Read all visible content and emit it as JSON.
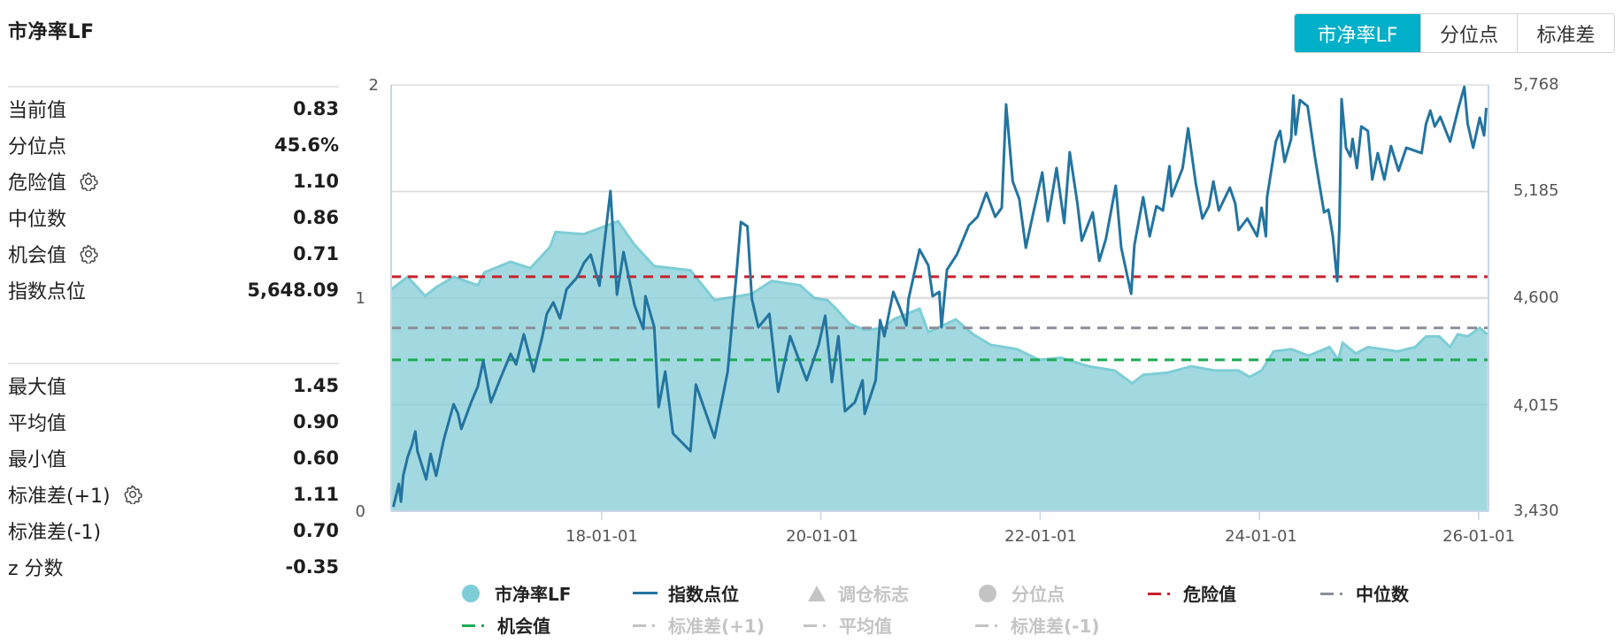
{
  "title": "市净率LF",
  "toggle_buttons": [
    {
      "label": "市净率LF",
      "active": true
    },
    {
      "label": "分位点",
      "active": false
    },
    {
      "label": "标准差",
      "active": false
    }
  ],
  "stats_top": [
    {
      "label": "当前值",
      "value": "0.83",
      "gear": false
    },
    {
      "label": "分位点",
      "value": "45.6%",
      "gear": false
    },
    {
      "label": "危险值",
      "value": "1.10",
      "gear": true
    },
    {
      "label": "中位数",
      "value": "0.86",
      "gear": false
    },
    {
      "label": "机会值",
      "value": "0.71",
      "gear": true
    },
    {
      "label": "指数点位",
      "value": "5,648.09",
      "gear": false
    }
  ],
  "stats_bottom": [
    {
      "label": "最大值",
      "value": "1.45",
      "gear": false
    },
    {
      "label": "平均值",
      "value": "0.90",
      "gear": false
    },
    {
      "label": "最小值",
      "value": "0.60",
      "gear": false
    },
    {
      "label": "标准差(+1)",
      "value": "1.11",
      "gear": true
    },
    {
      "label": "标准差(-1)",
      "value": "0.70",
      "gear": false
    },
    {
      "label": "z 分数",
      "value": "-0.35",
      "gear": false
    }
  ],
  "colors": {
    "accent": "#00afc8",
    "pb_fill": "#a2d9e0",
    "pb_line": "#7ecdd6",
    "index_line": "#2374a0",
    "danger": "#c8222a",
    "median": "#8a8f99",
    "opportunity": "#1faa55",
    "legend_off": "#c4c4c4"
  },
  "chart_data": {
    "type": "area+line",
    "title": "市净率LF",
    "xlabel": "",
    "ylabel_left": "市净率LF",
    "ylabel_right": "指数点位",
    "x_range": [
      2016.08,
      2026.09
    ],
    "ylim_left": [
      0,
      2
    ],
    "ylim_right": [
      3430,
      5768
    ],
    "left_ticks": [
      "0",
      "1",
      "2"
    ],
    "right_ticks": [
      "3,430",
      "4,015",
      "4,600",
      "5,185",
      "5,768"
    ],
    "x_ticks": [
      {
        "label": "18-01-01",
        "x": 2018.0
      },
      {
        "label": "20-01-01",
        "x": 2020.0
      },
      {
        "label": "22-01-01",
        "x": 2022.0
      },
      {
        "label": "24-01-01",
        "x": 2024.0
      },
      {
        "label": "26-01-01",
        "x": 2026.0
      }
    ],
    "grid": true,
    "legend_position": "bottom",
    "reference_lines": [
      {
        "name": "危险值",
        "value": 1.1,
        "color": "#c8222a"
      },
      {
        "name": "中位数",
        "value": 0.86,
        "color": "#8a8f99"
      },
      {
        "name": "机会值",
        "value": 0.71,
        "color": "#1faa55"
      }
    ],
    "series": [
      {
        "name": "市净率LF",
        "axis": "left",
        "kind": "area",
        "points": [
          [
            2016.08,
            1.04
          ],
          [
            2016.23,
            1.1
          ],
          [
            2016.39,
            1.01
          ],
          [
            2016.49,
            1.05
          ],
          [
            2016.65,
            1.1
          ],
          [
            2016.87,
            1.06
          ],
          [
            2016.93,
            1.12
          ],
          [
            2017.17,
            1.17
          ],
          [
            2017.35,
            1.14
          ],
          [
            2017.53,
            1.24
          ],
          [
            2017.58,
            1.31
          ],
          [
            2017.84,
            1.3
          ],
          [
            2018.15,
            1.36
          ],
          [
            2018.3,
            1.25
          ],
          [
            2018.48,
            1.15
          ],
          [
            2018.81,
            1.13
          ],
          [
            2019.03,
            0.99
          ],
          [
            2019.37,
            1.02
          ],
          [
            2019.55,
            1.08
          ],
          [
            2019.81,
            1.06
          ],
          [
            2019.94,
            1.0
          ],
          [
            2020.06,
            0.99
          ],
          [
            2020.14,
            0.95
          ],
          [
            2020.26,
            0.88
          ],
          [
            2020.4,
            0.85
          ],
          [
            2020.58,
            0.86
          ],
          [
            2020.66,
            0.9
          ],
          [
            2020.9,
            0.95
          ],
          [
            2020.98,
            0.84
          ],
          [
            2021.23,
            0.9
          ],
          [
            2021.39,
            0.83
          ],
          [
            2021.55,
            0.78
          ],
          [
            2021.79,
            0.76
          ],
          [
            2021.99,
            0.71
          ],
          [
            2022.19,
            0.72
          ],
          [
            2022.44,
            0.68
          ],
          [
            2022.68,
            0.66
          ],
          [
            2022.84,
            0.6
          ],
          [
            2022.94,
            0.64
          ],
          [
            2023.16,
            0.65
          ],
          [
            2023.38,
            0.68
          ],
          [
            2023.59,
            0.66
          ],
          [
            2023.81,
            0.66
          ],
          [
            2023.91,
            0.63
          ],
          [
            2024.02,
            0.66
          ],
          [
            2024.13,
            0.75
          ],
          [
            2024.29,
            0.76
          ],
          [
            2024.45,
            0.73
          ],
          [
            2024.64,
            0.77
          ],
          [
            2024.72,
            0.71
          ],
          [
            2024.76,
            0.79
          ],
          [
            2024.88,
            0.74
          ],
          [
            2024.99,
            0.77
          ],
          [
            2025.26,
            0.75
          ],
          [
            2025.42,
            0.77
          ],
          [
            2025.52,
            0.82
          ],
          [
            2025.64,
            0.82
          ],
          [
            2025.74,
            0.77
          ],
          [
            2025.81,
            0.83
          ],
          [
            2025.9,
            0.82
          ],
          [
            2026.01,
            0.86
          ],
          [
            2026.08,
            0.83
          ]
        ]
      },
      {
        "name": "指数点位",
        "axis": "right",
        "kind": "line",
        "points": [
          [
            2016.1,
            3454
          ],
          [
            2016.15,
            3580
          ],
          [
            2016.17,
            3483
          ],
          [
            2016.19,
            3624
          ],
          [
            2016.23,
            3726
          ],
          [
            2016.27,
            3794
          ],
          [
            2016.3,
            3867
          ],
          [
            2016.32,
            3760
          ],
          [
            2016.4,
            3605
          ],
          [
            2016.44,
            3745
          ],
          [
            2016.49,
            3624
          ],
          [
            2016.56,
            3823
          ],
          [
            2016.65,
            4017
          ],
          [
            2016.69,
            3964
          ],
          [
            2016.72,
            3881
          ],
          [
            2016.81,
            4027
          ],
          [
            2016.87,
            4114
          ],
          [
            2016.92,
            4255
          ],
          [
            2016.99,
            4027
          ],
          [
            2017.07,
            4148
          ],
          [
            2017.17,
            4293
          ],
          [
            2017.22,
            4235
          ],
          [
            2017.29,
            4400
          ],
          [
            2017.38,
            4196
          ],
          [
            2017.46,
            4390
          ],
          [
            2017.5,
            4512
          ],
          [
            2017.56,
            4575
          ],
          [
            2017.62,
            4487
          ],
          [
            2017.68,
            4647
          ],
          [
            2017.78,
            4715
          ],
          [
            2017.84,
            4793
          ],
          [
            2017.9,
            4837
          ],
          [
            2017.98,
            4667
          ],
          [
            2018.08,
            5186
          ],
          [
            2018.14,
            4618
          ],
          [
            2018.2,
            4851
          ],
          [
            2018.3,
            4560
          ],
          [
            2018.38,
            4429
          ],
          [
            2018.4,
            4609
          ],
          [
            2018.48,
            4439
          ],
          [
            2018.52,
            4002
          ],
          [
            2018.58,
            4196
          ],
          [
            2018.65,
            3857
          ],
          [
            2018.81,
            3760
          ],
          [
            2018.86,
            4124
          ],
          [
            2019.03,
            3833
          ],
          [
            2019.15,
            4196
          ],
          [
            2019.23,
            4730
          ],
          [
            2019.27,
            5016
          ],
          [
            2019.33,
            4992
          ],
          [
            2019.37,
            4594
          ],
          [
            2019.43,
            4439
          ],
          [
            2019.53,
            4512
          ],
          [
            2019.61,
            4085
          ],
          [
            2019.72,
            4390
          ],
          [
            2019.87,
            4148
          ],
          [
            2019.98,
            4342
          ],
          [
            2020.04,
            4502
          ],
          [
            2020.1,
            4138
          ],
          [
            2020.16,
            4390
          ],
          [
            2020.22,
            3978
          ],
          [
            2020.31,
            4027
          ],
          [
            2020.38,
            4148
          ],
          [
            2020.4,
            3964
          ],
          [
            2020.5,
            4148
          ],
          [
            2020.54,
            4478
          ],
          [
            2020.58,
            4390
          ],
          [
            2020.66,
            4633
          ],
          [
            2020.72,
            4546
          ],
          [
            2020.78,
            4449
          ],
          [
            2020.8,
            4594
          ],
          [
            2020.9,
            4866
          ],
          [
            2020.98,
            4778
          ],
          [
            2021.02,
            4609
          ],
          [
            2021.08,
            4633
          ],
          [
            2021.1,
            4439
          ],
          [
            2021.15,
            4754
          ],
          [
            2021.24,
            4837
          ],
          [
            2021.35,
            4997
          ],
          [
            2021.43,
            5045
          ],
          [
            2021.51,
            5176
          ],
          [
            2021.59,
            5045
          ],
          [
            2021.65,
            5094
          ],
          [
            2021.69,
            5661
          ],
          [
            2021.75,
            5239
          ],
          [
            2021.81,
            5142
          ],
          [
            2021.87,
            4875
          ],
          [
            2021.93,
            5045
          ],
          [
            2022.02,
            5288
          ],
          [
            2022.07,
            5021
          ],
          [
            2022.15,
            5312
          ],
          [
            2022.22,
            5011
          ],
          [
            2022.27,
            5399
          ],
          [
            2022.34,
            5118
          ],
          [
            2022.38,
            4914
          ],
          [
            2022.48,
            5069
          ],
          [
            2022.54,
            4803
          ],
          [
            2022.6,
            4924
          ],
          [
            2022.69,
            5215
          ],
          [
            2022.74,
            4875
          ],
          [
            2022.83,
            4623
          ],
          [
            2022.86,
            4890
          ],
          [
            2022.94,
            5152
          ],
          [
            2023.0,
            4938
          ],
          [
            2023.06,
            5103
          ],
          [
            2023.12,
            5079
          ],
          [
            2023.18,
            5322
          ],
          [
            2023.2,
            5157
          ],
          [
            2023.3,
            5312
          ],
          [
            2023.35,
            5530
          ],
          [
            2023.42,
            5225
          ],
          [
            2023.48,
            5035
          ],
          [
            2023.54,
            5103
          ],
          [
            2023.58,
            5239
          ],
          [
            2023.63,
            5079
          ],
          [
            2023.73,
            5205
          ],
          [
            2023.78,
            5118
          ],
          [
            2023.81,
            4972
          ],
          [
            2023.89,
            5035
          ],
          [
            2023.98,
            4938
          ],
          [
            2024.02,
            5094
          ],
          [
            2024.06,
            4938
          ],
          [
            2024.07,
            5152
          ],
          [
            2024.15,
            5457
          ],
          [
            2024.19,
            5516
          ],
          [
            2024.23,
            5346
          ],
          [
            2024.29,
            5472
          ],
          [
            2024.31,
            5710
          ],
          [
            2024.33,
            5496
          ],
          [
            2024.37,
            5685
          ],
          [
            2024.44,
            5651
          ],
          [
            2024.51,
            5360
          ],
          [
            2024.59,
            5069
          ],
          [
            2024.63,
            5084
          ],
          [
            2024.67,
            4938
          ],
          [
            2024.71,
            4691
          ],
          [
            2024.73,
            4987
          ],
          [
            2024.75,
            5690
          ],
          [
            2024.79,
            5423
          ],
          [
            2024.83,
            5375
          ],
          [
            2024.85,
            5472
          ],
          [
            2024.89,
            5312
          ],
          [
            2024.93,
            5540
          ],
          [
            2024.99,
            5516
          ],
          [
            2025.03,
            5249
          ],
          [
            2025.08,
            5394
          ],
          [
            2025.14,
            5249
          ],
          [
            2025.2,
            5433
          ],
          [
            2025.27,
            5297
          ],
          [
            2025.34,
            5423
          ],
          [
            2025.48,
            5394
          ],
          [
            2025.52,
            5554
          ],
          [
            2025.56,
            5627
          ],
          [
            2025.6,
            5540
          ],
          [
            2025.65,
            5593
          ],
          [
            2025.74,
            5457
          ],
          [
            2025.82,
            5651
          ],
          [
            2025.87,
            5758
          ],
          [
            2025.9,
            5554
          ],
          [
            2025.95,
            5423
          ],
          [
            2026.01,
            5588
          ],
          [
            2026.05,
            5491
          ],
          [
            2026.07,
            5642
          ]
        ]
      }
    ]
  },
  "legend": {
    "row1": [
      {
        "label": "市净率LF",
        "marker": "circle",
        "color": "#7ecdd6",
        "enabled": true
      },
      {
        "label": "指数点位",
        "marker": "line",
        "color": "#2374a0",
        "enabled": true
      },
      {
        "label": "调仓标志",
        "marker": "triangle",
        "color": "#c4c4c4",
        "enabled": false
      },
      {
        "label": "分位点",
        "marker": "circle",
        "color": "#c4c4c4",
        "enabled": false
      },
      {
        "label": "危险值",
        "marker": "dash-dot",
        "color": "#c8222a",
        "enabled": true
      },
      {
        "label": "中位数",
        "marker": "dash-dot",
        "color": "#8a8f99",
        "enabled": true
      }
    ],
    "row2": [
      {
        "label": "机会值",
        "marker": "dash-dot",
        "color": "#1faa55",
        "enabled": true
      },
      {
        "label": "标准差(+1)",
        "marker": "dash-dot",
        "color": "#c4c4c4",
        "enabled": false
      },
      {
        "label": "平均值",
        "marker": "dash-dot",
        "color": "#c4c4c4",
        "enabled": false
      },
      {
        "label": "标准差(-1)",
        "marker": "dash-dot",
        "color": "#c4c4c4",
        "enabled": false
      }
    ]
  }
}
